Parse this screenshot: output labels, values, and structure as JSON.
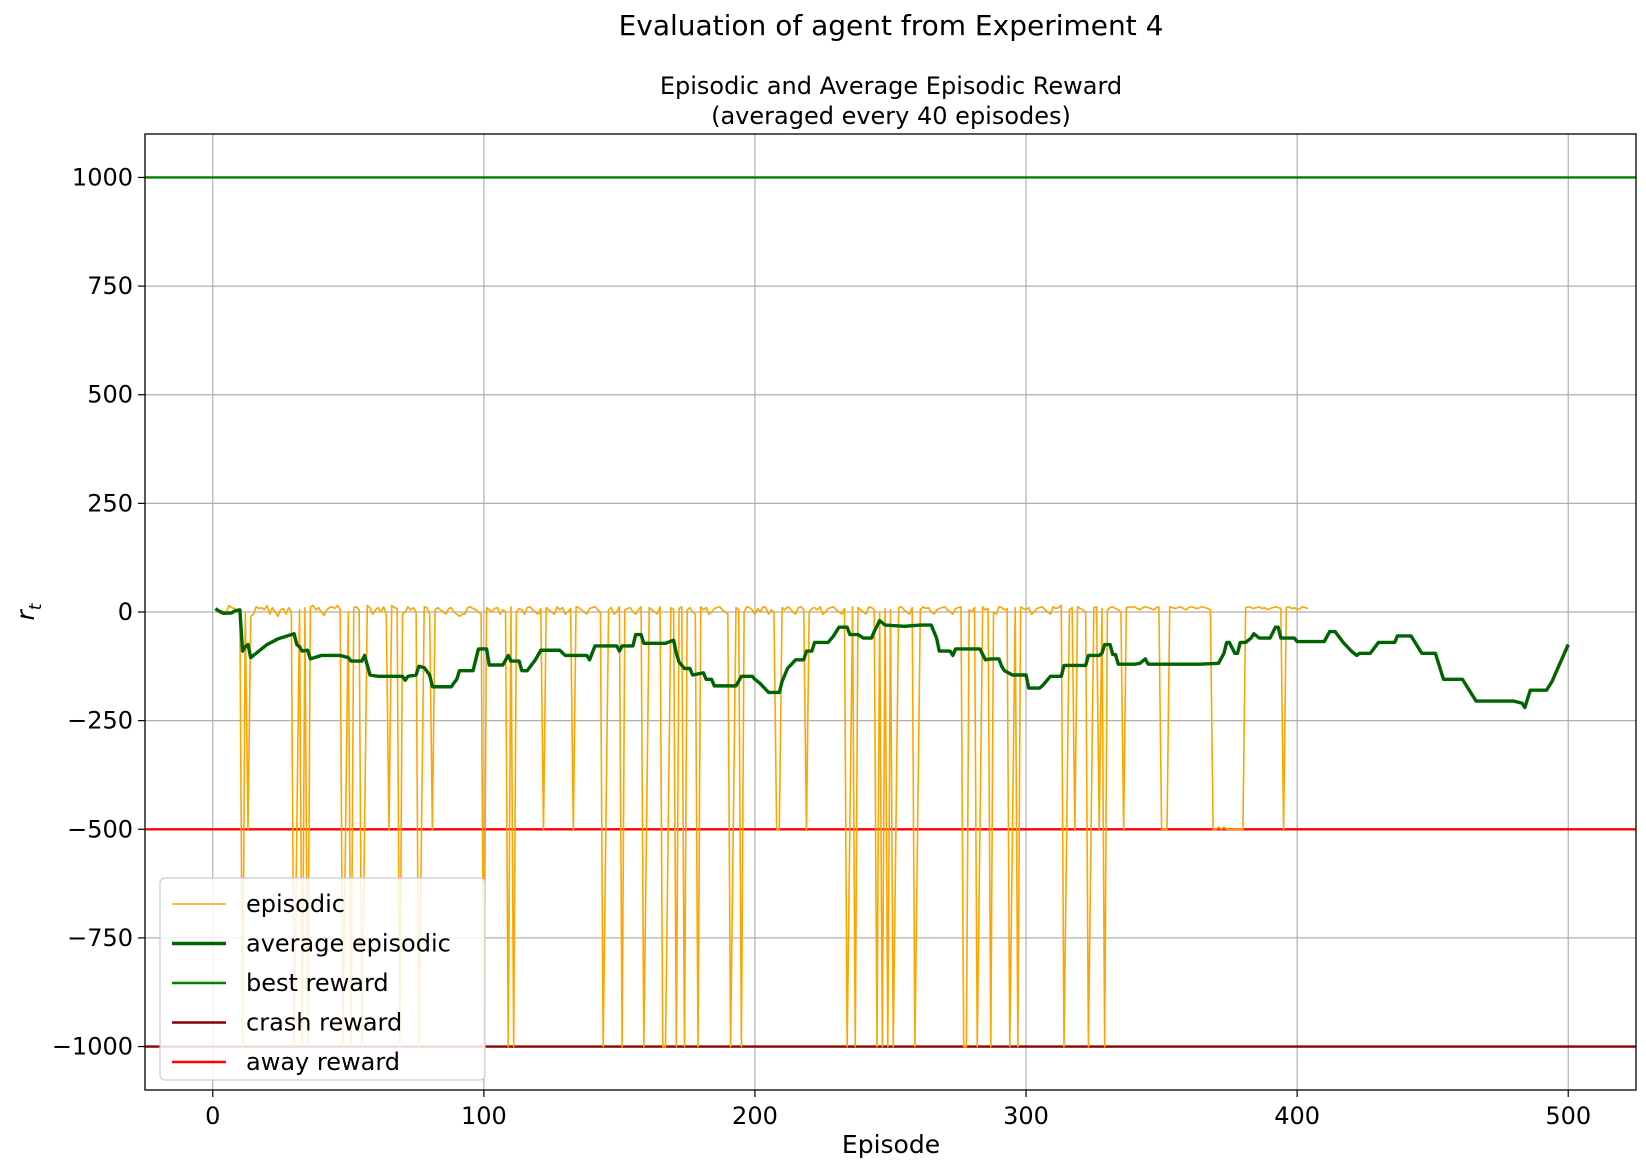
{
  "figure": {
    "suptitle": "Evaluation of agent from Experiment 4"
  },
  "chart_data": {
    "type": "line",
    "title_line1": "Episodic and Average Episodic Reward",
    "title_line2": "(averaged every 40 episodes)",
    "xlabel": "Episode",
    "ylabel": "r",
    "ylabel_subscript": "t",
    "xlim": [
      -25,
      525
    ],
    "ylim": [
      -1100,
      1100
    ],
    "xticks": [
      0,
      100,
      200,
      300,
      400,
      500
    ],
    "yticks": [
      1000,
      750,
      500,
      250,
      0,
      -250,
      -500,
      -750,
      -1000
    ],
    "ytick_labels": [
      "1000",
      "750",
      "500",
      "250",
      "0",
      "−250",
      "−500",
      "−750",
      "−1000"
    ],
    "grid": true,
    "legend_position": "lower-left",
    "colors": {
      "episodic": "#ffa500",
      "average": "#006400",
      "best": "#008000",
      "crash": "#8b0000",
      "away": "#ff0000",
      "grid": "#b0b0b0"
    },
    "series": [
      {
        "name": "episodic",
        "key": "episodic",
        "x_start": 1,
        "values": [
          5,
          3,
          -5,
          2,
          0,
          15,
          10,
          8,
          5,
          -3,
          -1000,
          0,
          -500,
          -10,
          -5,
          12,
          8,
          10,
          5,
          15,
          -5,
          10,
          0,
          -10,
          5,
          8,
          -5,
          10,
          0,
          -1000,
          -500,
          5,
          -1000,
          10,
          -1000,
          12,
          15,
          5,
          10,
          0,
          -8,
          5,
          10,
          12,
          8,
          15,
          5,
          -1000,
          -500,
          0,
          -1000,
          10,
          12,
          5,
          -1000,
          -500,
          15,
          10,
          -5,
          5,
          10,
          0,
          12,
          -5,
          -500,
          15,
          10,
          8,
          -1000,
          -5,
          0,
          12,
          5,
          10,
          0,
          -1000,
          -500,
          12,
          10,
          -5,
          -500,
          5,
          10,
          5,
          0,
          -5,
          8,
          10,
          0,
          -5,
          -10,
          -5,
          -5,
          10,
          12,
          8,
          5,
          0,
          -5,
          -1000,
          10,
          5,
          0,
          8,
          10,
          -5,
          5,
          0,
          -1000,
          12,
          -1000,
          0,
          8,
          5,
          -5,
          10,
          12,
          5,
          0,
          -5,
          8,
          -500,
          10,
          5,
          0,
          -5,
          12,
          5,
          10,
          -5,
          0,
          8,
          -500,
          12,
          10,
          5,
          0,
          -5,
          8,
          10,
          12,
          5,
          0,
          -1000,
          -500,
          5,
          10,
          -5,
          0,
          12,
          -1000,
          5,
          8,
          10,
          0,
          -5,
          5,
          12,
          -1000,
          -500,
          10,
          5,
          0,
          -5,
          12,
          -1000,
          -1000,
          -500,
          10,
          5,
          -1000,
          8,
          12,
          -1000,
          5,
          10,
          0,
          -5,
          -1000,
          12,
          5,
          10,
          -5,
          0,
          8,
          10,
          12,
          5,
          0,
          -5,
          -1000,
          -500,
          10,
          5,
          -1000,
          0,
          12,
          10,
          5,
          -5,
          8,
          0,
          12,
          10,
          -5,
          5,
          0,
          -500,
          -500,
          10,
          5,
          12,
          8,
          0,
          -5,
          10,
          12,
          5,
          -500,
          0,
          8,
          10,
          5,
          12,
          -5,
          0,
          8,
          10,
          12,
          5,
          0,
          -5,
          8,
          -1000,
          -500,
          12,
          -1000,
          10,
          5,
          0,
          -5,
          12,
          10,
          5,
          -1000,
          0,
          -1000,
          8,
          -1000,
          5,
          -1000,
          -500,
          10,
          12,
          5,
          0,
          -5,
          10,
          -1000,
          -500,
          5,
          12,
          8,
          10,
          0,
          -5,
          5,
          8,
          10,
          12,
          5,
          0,
          -5,
          8,
          10,
          12,
          -1000,
          -1000,
          5,
          0,
          10,
          -1000,
          -500,
          12,
          5,
          8,
          -1000,
          0,
          -5,
          12,
          10,
          5,
          8,
          -1000,
          -500,
          10,
          -1000,
          12,
          8,
          5,
          10,
          -5,
          0,
          8,
          10,
          12,
          5,
          0,
          -5,
          12,
          8,
          10,
          15,
          -1000,
          -500,
          5,
          10,
          -500,
          12,
          8,
          5,
          0,
          -1000,
          -500,
          10,
          12,
          -500,
          8,
          -1000,
          5,
          10,
          12,
          8,
          5,
          0,
          -500,
          10,
          12,
          10,
          12,
          8,
          5,
          10,
          12,
          10,
          8,
          5,
          10,
          12,
          -500,
          -500,
          -500,
          12,
          10,
          8,
          10,
          12,
          8,
          5,
          10,
          12,
          10,
          8,
          10,
          12,
          10,
          8,
          5,
          -500,
          -500,
          -495,
          -500,
          -495,
          -500,
          -500,
          -500,
          -500,
          -500,
          -500,
          -500,
          10,
          12,
          10,
          8,
          10,
          12,
          8,
          10,
          5,
          8,
          10,
          12,
          10,
          8,
          -500,
          10,
          12,
          8,
          10,
          5,
          8,
          12,
          10,
          8
        ]
      },
      {
        "name": "average episodic",
        "key": "average",
        "points": [
          [
            1,
            8
          ],
          [
            2,
            3
          ],
          [
            4,
            -3
          ],
          [
            7,
            -2
          ],
          [
            8,
            2
          ],
          [
            10,
            5
          ],
          [
            11,
            -90
          ],
          [
            12,
            -80
          ],
          [
            13,
            -75
          ],
          [
            14,
            -105
          ],
          [
            17,
            -90
          ],
          [
            20,
            -75
          ],
          [
            24,
            -62
          ],
          [
            30,
            -50
          ],
          [
            31,
            -75
          ],
          [
            32,
            -80
          ],
          [
            33,
            -90
          ],
          [
            35,
            -88
          ],
          [
            36,
            -108
          ],
          [
            40,
            -100
          ],
          [
            47,
            -100
          ],
          [
            50,
            -105
          ],
          [
            51,
            -113
          ],
          [
            55,
            -113
          ],
          [
            56,
            -100
          ],
          [
            58,
            -145
          ],
          [
            61,
            -148
          ],
          [
            70,
            -148
          ],
          [
            71,
            -157
          ],
          [
            72,
            -148
          ],
          [
            75,
            -145
          ],
          [
            76,
            -125
          ],
          [
            78,
            -128
          ],
          [
            80,
            -145
          ],
          [
            81,
            -172
          ],
          [
            88,
            -172
          ],
          [
            89,
            -163
          ],
          [
            90,
            -155
          ],
          [
            91,
            -135
          ],
          [
            96,
            -135
          ],
          [
            97,
            -110
          ],
          [
            98,
            -85
          ],
          [
            101,
            -85
          ],
          [
            102,
            -122
          ],
          [
            107,
            -122
          ],
          [
            109,
            -100
          ],
          [
            110,
            -113
          ],
          [
            113,
            -113
          ],
          [
            114,
            -135
          ],
          [
            116,
            -135
          ],
          [
            119,
            -110
          ],
          [
            121,
            -88
          ],
          [
            128,
            -88
          ],
          [
            130,
            -100
          ],
          [
            138,
            -100
          ],
          [
            139,
            -110
          ],
          [
            141,
            -78
          ],
          [
            149,
            -78
          ],
          [
            150,
            -90
          ],
          [
            151,
            -78
          ],
          [
            155,
            -78
          ],
          [
            156,
            -52
          ],
          [
            158,
            -52
          ],
          [
            159,
            -72
          ],
          [
            167,
            -72
          ],
          [
            170,
            -65
          ],
          [
            171,
            -95
          ],
          [
            172,
            -115
          ],
          [
            174,
            -130
          ],
          [
            176,
            -130
          ],
          [
            177,
            -145
          ],
          [
            181,
            -140
          ],
          [
            182,
            -155
          ],
          [
            184,
            -155
          ],
          [
            185,
            -170
          ],
          [
            193,
            -170
          ],
          [
            195,
            -148
          ],
          [
            199,
            -148
          ],
          [
            200,
            -155
          ],
          [
            202,
            -165
          ],
          [
            205,
            -185
          ],
          [
            209,
            -185
          ],
          [
            210,
            -160
          ],
          [
            212,
            -130
          ],
          [
            215,
            -110
          ],
          [
            218,
            -110
          ],
          [
            219,
            -90
          ],
          [
            221,
            -90
          ],
          [
            222,
            -70
          ],
          [
            227,
            -70
          ],
          [
            229,
            -55
          ],
          [
            231,
            -35
          ],
          [
            234,
            -35
          ],
          [
            235,
            -52
          ],
          [
            238,
            -52
          ],
          [
            240,
            -60
          ],
          [
            243,
            -60
          ],
          [
            244,
            -45
          ],
          [
            246,
            -20
          ],
          [
            248,
            -30
          ],
          [
            253,
            -32
          ],
          [
            255,
            -33
          ],
          [
            261,
            -30
          ],
          [
            265,
            -30
          ],
          [
            267,
            -60
          ],
          [
            268,
            -90
          ],
          [
            272,
            -90
          ],
          [
            273,
            -100
          ],
          [
            274,
            -85
          ],
          [
            283,
            -85
          ],
          [
            285,
            -110
          ],
          [
            287,
            -108
          ],
          [
            290,
            -108
          ],
          [
            291,
            -125
          ],
          [
            292,
            -135
          ],
          [
            295,
            -145
          ],
          [
            300,
            -145
          ],
          [
            301,
            -175
          ],
          [
            305,
            -175
          ],
          [
            306,
            -170
          ],
          [
            309,
            -148
          ],
          [
            313,
            -148
          ],
          [
            314,
            -123
          ],
          [
            322,
            -123
          ],
          [
            323,
            -100
          ],
          [
            327,
            -100
          ],
          [
            328,
            -95
          ],
          [
            329,
            -75
          ],
          [
            331,
            -75
          ],
          [
            332,
            -98
          ],
          [
            333,
            -98
          ],
          [
            334,
            -120
          ],
          [
            340,
            -120
          ],
          [
            342,
            -118
          ],
          [
            344,
            -108
          ],
          [
            345,
            -120
          ],
          [
            352,
            -120
          ],
          [
            359,
            -120
          ],
          [
            364,
            -120
          ],
          [
            371,
            -118
          ],
          [
            373,
            -95
          ],
          [
            374,
            -70
          ],
          [
            375,
            -70
          ],
          [
            377,
            -95
          ],
          [
            378,
            -95
          ],
          [
            379,
            -70
          ],
          [
            381,
            -70
          ],
          [
            383,
            -60
          ],
          [
            384,
            -50
          ],
          [
            386,
            -60
          ],
          [
            390,
            -60
          ],
          [
            392,
            -35
          ],
          [
            393,
            -35
          ],
          [
            394,
            -60
          ],
          [
            399,
            -60
          ],
          [
            400,
            -68
          ],
          [
            401,
            -68
          ],
          [
            410,
            -68
          ],
          [
            412,
            -45
          ],
          [
            414,
            -45
          ],
          [
            417,
            -70
          ],
          [
            420,
            -90
          ],
          [
            422,
            -100
          ],
          [
            423,
            -95
          ],
          [
            427,
            -95
          ],
          [
            430,
            -70
          ],
          [
            431,
            -70
          ],
          [
            436,
            -70
          ],
          [
            437,
            -55
          ],
          [
            442,
            -55
          ],
          [
            446,
            -95
          ],
          [
            451,
            -95
          ],
          [
            454,
            -155
          ],
          [
            461,
            -155
          ],
          [
            466,
            -205
          ],
          [
            480,
            -205
          ],
          [
            483,
            -210
          ],
          [
            484,
            -220
          ],
          [
            485,
            -200
          ],
          [
            486,
            -180
          ],
          [
            492,
            -180
          ],
          [
            494,
            -160
          ],
          [
            500,
            -75
          ]
        ]
      },
      {
        "name": "best reward",
        "key": "best",
        "y": 1000
      },
      {
        "name": "crash reward",
        "key": "crash",
        "y": -1000
      },
      {
        "name": "away reward",
        "key": "away",
        "y": -500
      }
    ]
  }
}
